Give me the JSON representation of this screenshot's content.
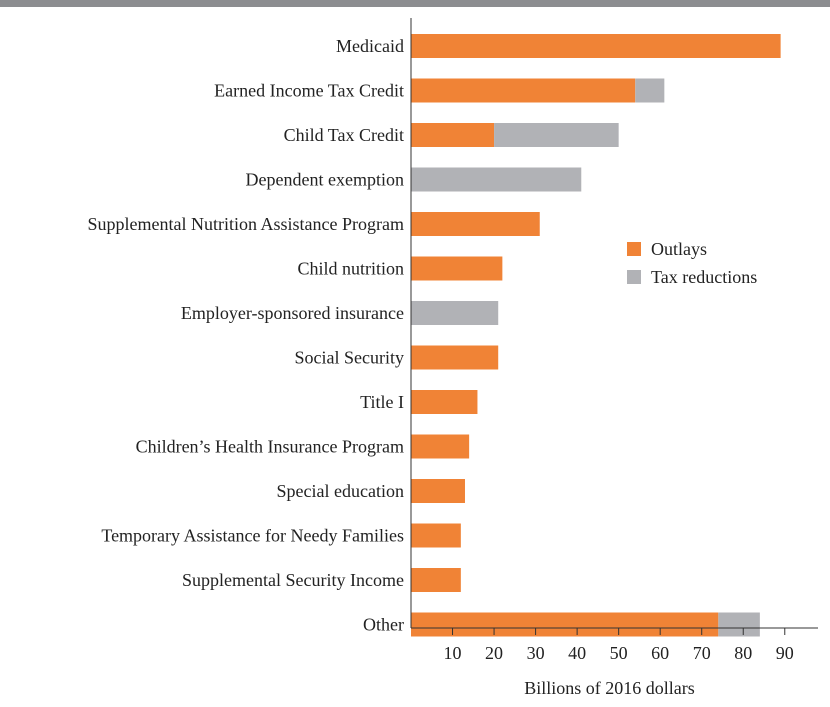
{
  "chart_data": {
    "type": "bar",
    "orientation": "horizontal",
    "stacked": true,
    "title": "",
    "xlabel": "Billions of 2016 dollars",
    "ylabel": "",
    "xlim": [
      0,
      98
    ],
    "xticks": [
      10,
      20,
      30,
      40,
      50,
      60,
      70,
      80,
      90
    ],
    "grid": false,
    "legend_position": "right",
    "categories": [
      "Medicaid",
      "Earned Income Tax Credit",
      "Child Tax Credit",
      "Dependent exemption",
      "Supplemental Nutrition Assistance Program",
      "Child nutrition",
      "Employer-sponsored insurance",
      "Social Security",
      "Title I",
      "Children’s Health Insurance Program",
      "Special education",
      "Temporary Assistance for Needy Families",
      "Supplemental Security Income",
      "Other"
    ],
    "series": [
      {
        "name": "Outlays",
        "color": "#F08336",
        "values": [
          89,
          54,
          20,
          0,
          31,
          22,
          0,
          21,
          16,
          14,
          13,
          12,
          12,
          74
        ]
      },
      {
        "name": "Tax reductions",
        "color": "#B1B2B6",
        "values": [
          0,
          7,
          30,
          41,
          0,
          0,
          21,
          0,
          0,
          0,
          0,
          0,
          0,
          10
        ]
      }
    ]
  },
  "colors": {
    "top_rule": "#8C8D90",
    "axis": "#333333"
  }
}
